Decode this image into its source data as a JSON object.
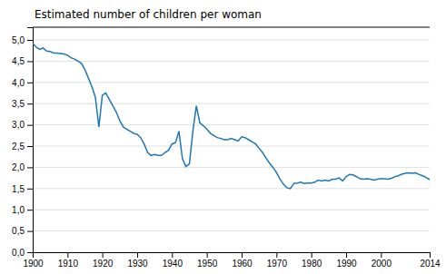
{
  "chart_data": {
    "type": "line",
    "title": "Estimated number of children per woman",
    "x": [
      1900,
      1901,
      1902,
      1903,
      1904,
      1905,
      1906,
      1907,
      1908,
      1909,
      1910,
      1911,
      1912,
      1913,
      1914,
      1915,
      1916,
      1917,
      1918,
      1919,
      1920,
      1921,
      1922,
      1923,
      1924,
      1925,
      1926,
      1927,
      1928,
      1929,
      1930,
      1931,
      1932,
      1933,
      1934,
      1935,
      1936,
      1937,
      1938,
      1939,
      1940,
      1941,
      1942,
      1943,
      1944,
      1945,
      1946,
      1947,
      1948,
      1949,
      1950,
      1951,
      1952,
      1953,
      1954,
      1955,
      1956,
      1957,
      1958,
      1959,
      1960,
      1961,
      1962,
      1963,
      1964,
      1965,
      1966,
      1967,
      1968,
      1969,
      1970,
      1971,
      1972,
      1973,
      1974,
      1975,
      1976,
      1977,
      1978,
      1979,
      1980,
      1981,
      1982,
      1983,
      1984,
      1985,
      1986,
      1987,
      1988,
      1989,
      1990,
      1991,
      1992,
      1993,
      1994,
      1995,
      1996,
      1997,
      1998,
      1999,
      2000,
      2001,
      2002,
      2003,
      2004,
      2005,
      2006,
      2007,
      2008,
      2009,
      2010,
      2011,
      2012,
      2013,
      2014
    ],
    "values": [
      4.92,
      4.83,
      4.78,
      4.81,
      4.74,
      4.73,
      4.69,
      4.69,
      4.68,
      4.67,
      4.64,
      4.58,
      4.55,
      4.5,
      4.45,
      4.3,
      4.1,
      3.9,
      3.65,
      2.95,
      3.7,
      3.75,
      3.6,
      3.45,
      3.3,
      3.1,
      2.95,
      2.9,
      2.85,
      2.8,
      2.78,
      2.7,
      2.55,
      2.35,
      2.28,
      2.3,
      2.28,
      2.28,
      2.35,
      2.4,
      2.55,
      2.58,
      2.85,
      2.2,
      2.02,
      2.08,
      2.85,
      3.45,
      3.05,
      2.98,
      2.9,
      2.8,
      2.75,
      2.7,
      2.68,
      2.65,
      2.65,
      2.68,
      2.65,
      2.62,
      2.72,
      2.7,
      2.65,
      2.6,
      2.55,
      2.45,
      2.35,
      2.22,
      2.1,
      2.0,
      1.88,
      1.73,
      1.6,
      1.52,
      1.5,
      1.62,
      1.63,
      1.65,
      1.62,
      1.63,
      1.63,
      1.65,
      1.7,
      1.68,
      1.7,
      1.68,
      1.72,
      1.72,
      1.75,
      1.68,
      1.78,
      1.83,
      1.82,
      1.78,
      1.73,
      1.72,
      1.73,
      1.72,
      1.7,
      1.72,
      1.73,
      1.73,
      1.72,
      1.74,
      1.78,
      1.8,
      1.84,
      1.86,
      1.87,
      1.86,
      1.87,
      1.83,
      1.8,
      1.76,
      1.71
    ],
    "xlim": [
      1900,
      2014
    ],
    "ylim": [
      0.0,
      5.3
    ],
    "xticks": [
      1900,
      1910,
      1920,
      1930,
      1940,
      1950,
      1960,
      1970,
      1980,
      1990,
      2000,
      2014
    ],
    "yticks": [
      {
        "value": 0.0,
        "label": "0,0"
      },
      {
        "value": 0.5,
        "label": "0,5"
      },
      {
        "value": 1.0,
        "label": "1,0"
      },
      {
        "value": 1.5,
        "label": "1,5"
      },
      {
        "value": 2.0,
        "label": "2,0"
      },
      {
        "value": 2.5,
        "label": "2,5"
      },
      {
        "value": 3.0,
        "label": "3,0"
      },
      {
        "value": 3.5,
        "label": "3,5"
      },
      {
        "value": 4.0,
        "label": "4,0"
      },
      {
        "value": 4.5,
        "label": "4,5"
      },
      {
        "value": 5.0,
        "label": "5,0"
      }
    ],
    "grid": true
  }
}
